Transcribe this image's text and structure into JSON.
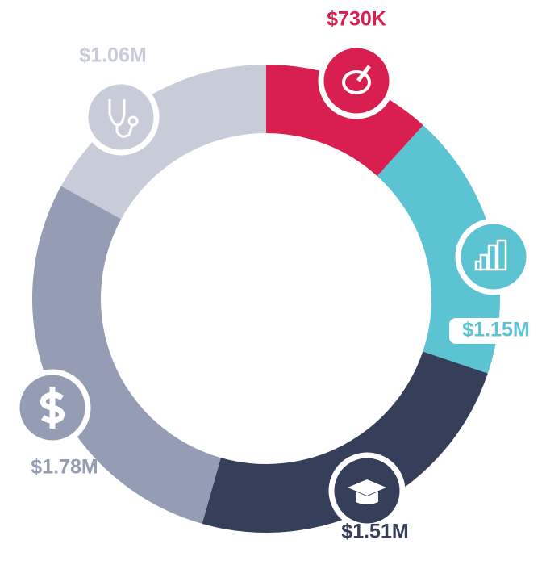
{
  "chart_data": {
    "type": "donut",
    "values": [
      730000,
      1150000,
      1510000,
      1780000,
      1060000
    ],
    "value_labels": [
      "$730K",
      "$1.15M",
      "$1.51M",
      "$1.78M",
      "$1.06M"
    ],
    "colors": [
      "#d81f4f",
      "#5bc3d1",
      "#363f59",
      "#959db5",
      "#c8ccd9"
    ]
  }
}
